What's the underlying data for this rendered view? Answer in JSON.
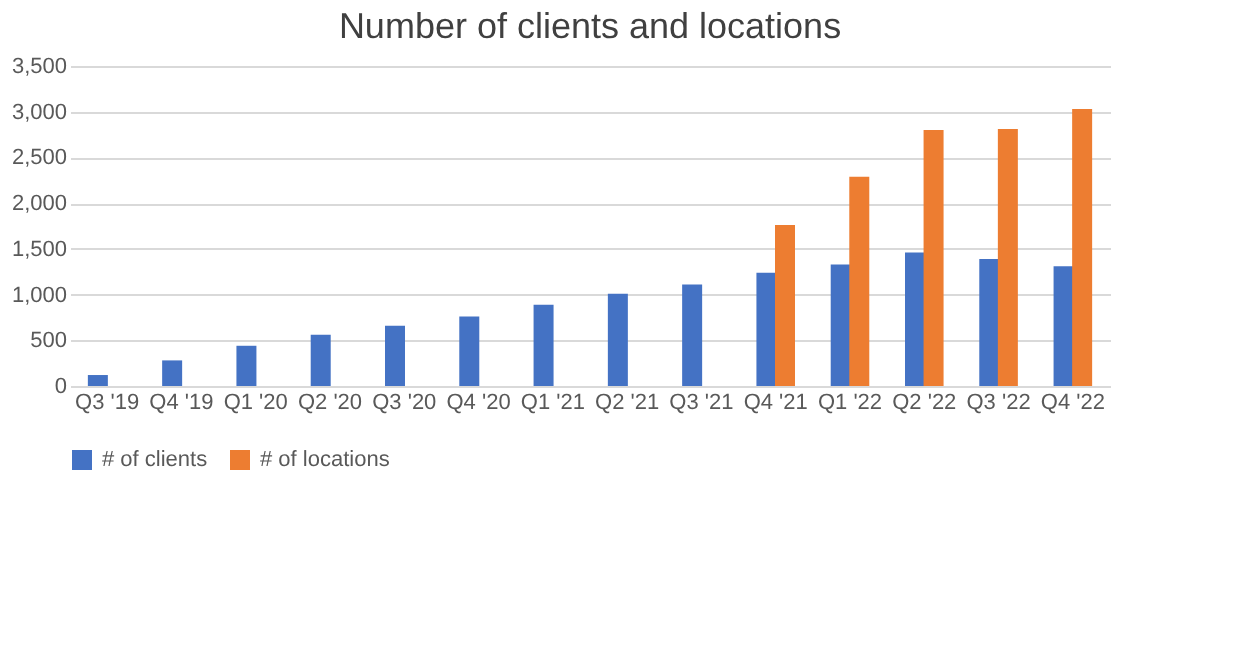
{
  "chart_data": {
    "type": "bar",
    "title": "Number of clients and locations",
    "categories": [
      "Q3 '19",
      "Q4 '19",
      "Q1 '20",
      "Q2 '20",
      "Q3 '20",
      "Q4 '20",
      "Q1 '21",
      "Q2 '21",
      "Q3 '21",
      "Q4 '21",
      "Q1 '22",
      "Q2 '22",
      "Q3 '22",
      "Q4 '22"
    ],
    "series": [
      {
        "name": "# of clients",
        "color": "#4472c4",
        "values": [
          120,
          280,
          440,
          560,
          660,
          760,
          890,
          1010,
          1110,
          1240,
          1330,
          1460,
          1390,
          1310
        ]
      },
      {
        "name": "# of locations",
        "color": "#ed7d31",
        "values": [
          null,
          null,
          null,
          null,
          null,
          null,
          null,
          null,
          null,
          1760,
          2290,
          2800,
          2810,
          3030
        ]
      }
    ],
    "ylim": [
      0,
      3500
    ],
    "yticks": [
      {
        "value": 0,
        "label": "0"
      },
      {
        "value": 500,
        "label": "500"
      },
      {
        "value": 1000,
        "label": "1,000"
      },
      {
        "value": 1500,
        "label": "1,500"
      },
      {
        "value": 2000,
        "label": "2,000"
      },
      {
        "value": 2500,
        "label": "2,500"
      },
      {
        "value": 3000,
        "label": "3,000"
      },
      {
        "value": 3500,
        "label": "3,500"
      }
    ],
    "grid": "y",
    "legend": "bottom"
  }
}
